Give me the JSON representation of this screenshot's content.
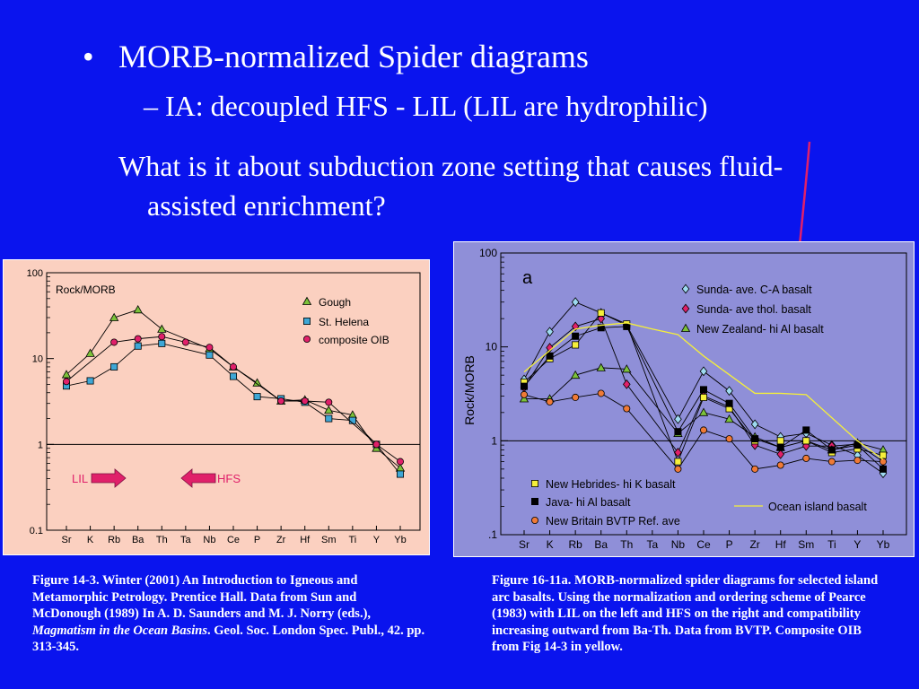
{
  "slide": {
    "bullet": "•",
    "heading": "MORB-normalized Spider diagrams",
    "subheading": "– IA: decoupled HFS - LIL (LIL are hydrophilic)",
    "question": "What is it about subduction zone setting that causes fluid-assisted enrichment?",
    "colors": {
      "background": "#0a14ee",
      "arrow": "#e0206a"
    }
  },
  "caption_left": {
    "part1": "Figure 14-3.  Winter (2001) An Introduction to Igneous and Metamorphic Petrology. Prentice Hall. Data from Sun and McDonough (1989) In A. D. Saunders and M. J. Norry (eds.), ",
    "italic": "Magmatism in the Ocean Basins",
    "part2": ". Geol. Soc. London Spec. Publ., 42. pp. 313-345."
  },
  "caption_right": {
    "text": "Figure 16-11a. MORB-normalized spider diagrams for selected island arc basalts. Using the normalization and ordering scheme of Pearce (1983) with LIL on the left and HFS on the right and compatibility increasing outward from Ba-Th. Data from BVTP. Composite OIB from Fig 14-3 in yellow."
  },
  "chart_data": [
    {
      "type": "line",
      "scale": "log",
      "ylabel": "Rock/MORB",
      "ylim": [
        0.1,
        100
      ],
      "yticks": [
        {
          "v": 100,
          "label": "100"
        },
        {
          "v": 10,
          "label": "10"
        },
        {
          "v": 1,
          "label": "1"
        },
        {
          "v": 0.1,
          "label": "0.1"
        }
      ],
      "categories": [
        "Sr",
        "K",
        "Rb",
        "Ba",
        "Th",
        "Ta",
        "Nb",
        "Ce",
        "P",
        "Zr",
        "Hf",
        "Sm",
        "Ti",
        "Y",
        "Yb"
      ],
      "reference_line": 1,
      "legend_position": "top-right",
      "colors": {
        "background": "#fbd0c0"
      },
      "series": [
        {
          "name": "Gough",
          "marker": "triangle",
          "color": "#7cc23a",
          "values": [
            6.5,
            11.5,
            30,
            37,
            22,
            null,
            13,
            8,
            5.2,
            3.2,
            3.3,
            2.5,
            2.2,
            0.9,
            0.53
          ]
        },
        {
          "name": "St. Helena",
          "marker": "square",
          "color": "#3ea7d6",
          "values": [
            4.8,
            5.5,
            8,
            14,
            15,
            null,
            11,
            6.2,
            3.6,
            3.4,
            3.1,
            2.0,
            1.9,
            1.0,
            0.45
          ]
        },
        {
          "name": "composite OIB",
          "marker": "circle",
          "color": "#e0206a",
          "values": [
            5.4,
            null,
            15.5,
            17,
            18,
            15.5,
            13.5,
            8,
            null,
            3.2,
            3.2,
            3.1,
            null,
            1.0,
            0.63
          ]
        }
      ],
      "annotations": [
        {
          "label": "LIL",
          "direction": "right",
          "color": "#e0206a"
        },
        {
          "label": "HFS",
          "direction": "left",
          "color": "#e0206a"
        }
      ]
    },
    {
      "type": "line",
      "scale": "log",
      "panel_label": "a",
      "ylabel": "Rock/MORB",
      "ylim": [
        0.1,
        100
      ],
      "yticks": [
        {
          "v": 100,
          "label": "100"
        },
        {
          "v": 10,
          "label": "10"
        },
        {
          "v": 1,
          "label": "1"
        },
        {
          "v": 0.1,
          "label": ".1"
        }
      ],
      "categories": [
        "Sr",
        "K",
        "Rb",
        "Ba",
        "Th",
        "Ta",
        "Nb",
        "Ce",
        "P",
        "Zr",
        "Hf",
        "Sm",
        "Ti",
        "Y",
        "Yb"
      ],
      "reference_line": 1,
      "legend_position": "top-right and bottom-left",
      "colors": {
        "background": "#8f8fd8"
      },
      "series": [
        {
          "name": "Sunda- ave. C-A basalt",
          "marker": "diamond",
          "color": "#9edaf0",
          "values": [
            4.5,
            14.5,
            30,
            23,
            17,
            null,
            1.7,
            5.5,
            3.4,
            1.5,
            1.1,
            1.2,
            0.9,
            0.7,
            0.45
          ]
        },
        {
          "name": "Sunda- ave thol. basalt",
          "marker": "diamond",
          "color": "#e0206a",
          "values": [
            3.7,
            9.8,
            16.5,
            20,
            4.0,
            null,
            0.75,
            3.0,
            2.3,
            0.9,
            0.72,
            0.88,
            0.88,
            0.92,
            0.6
          ]
        },
        {
          "name": "New Zealand- hi Al basalt",
          "marker": "triangle",
          "color": "#7cc23a",
          "values": [
            2.8,
            2.8,
            5.0,
            6.0,
            5.8,
            null,
            1.2,
            2.0,
            1.7,
            1.1,
            0.85,
            1.0,
            0.8,
            0.95,
            0.8
          ]
        },
        {
          "name": "New Hebrides- hi K basalt",
          "marker": "square",
          "color": "#f5ef3a",
          "values": [
            4.2,
            7.5,
            10.5,
            23,
            17.5,
            null,
            0.6,
            2.9,
            2.2,
            1.0,
            1.0,
            1.0,
            0.75,
            0.82,
            0.7
          ]
        },
        {
          "name": "Java- hi Al basalt",
          "marker": "square",
          "color": "#000000",
          "values": [
            3.8,
            8,
            13,
            16,
            16.5,
            null,
            1.25,
            3.5,
            2.5,
            1.05,
            0.85,
            1.3,
            0.8,
            0.9,
            0.5
          ]
        },
        {
          "name": "New Britain BVTP Ref. ave",
          "marker": "circle",
          "color": "#f07a36",
          "values": [
            3.1,
            2.6,
            2.9,
            3.2,
            2.2,
            null,
            0.5,
            1.3,
            1.05,
            0.5,
            0.55,
            0.65,
            0.6,
            0.62,
            0.6
          ]
        },
        {
          "name": "Ocean island basalt",
          "marker": "none",
          "color": "#f5ef3a",
          "values": [
            5.4,
            null,
            15.5,
            17,
            18,
            15.5,
            13.5,
            8,
            null,
            3.2,
            3.2,
            3.1,
            null,
            1.0,
            0.63
          ]
        }
      ]
    }
  ]
}
